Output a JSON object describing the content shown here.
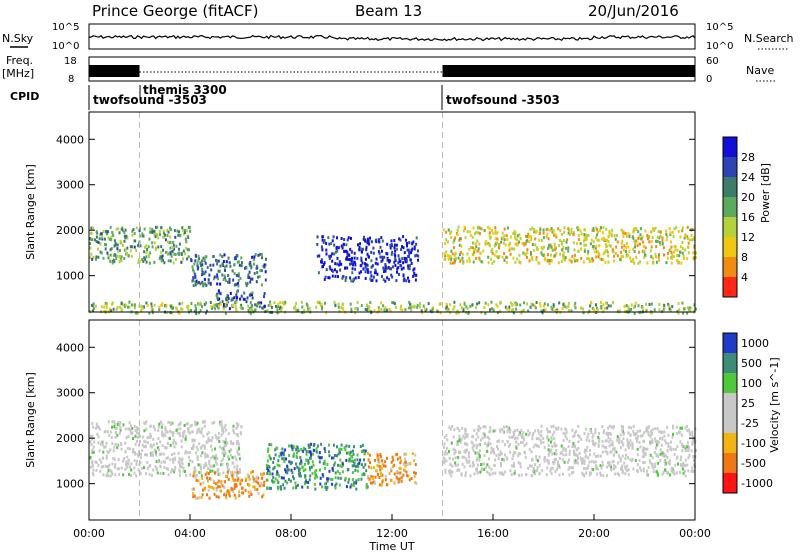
{
  "header": {
    "station": "Prince George (fitACF)",
    "beam": "Beam 13",
    "date": "20/Jun/2016"
  },
  "top_panels": {
    "nsky_label": "N.Sky",
    "nsearch_label": "N.Search",
    "noise_ticks_left": [
      "10^5",
      "10^0"
    ],
    "noise_ticks_right": [
      "10^5",
      "10^0"
    ],
    "freq_label_1": "Freq.",
    "freq_label_2": "[MHz]",
    "freq_ticks": [
      "18",
      "8"
    ],
    "nave_label": "Nave",
    "nave_ticks": [
      "60",
      "0"
    ],
    "cpid_label": "CPID",
    "cpid_segments": [
      {
        "name": "twofsound -3503",
        "start_hour": 0
      },
      {
        "name": "themis 3300",
        "start_hour": 2
      },
      {
        "name": "twofsound -3503",
        "start_hour": 14
      }
    ]
  },
  "chart_data": [
    {
      "type": "heatmap",
      "title": "",
      "ylabel": "Slant Range [km]",
      "xlabel": "",
      "xlim": [
        0,
        24
      ],
      "ylim": [
        200,
        4600
      ],
      "yticks": [
        "1000",
        "2000",
        "3000",
        "4000"
      ],
      "colorbar_label": "Power [dB]",
      "colorbar_ticks": [
        "4",
        "8",
        "12",
        "16",
        "20",
        "24",
        "28"
      ],
      "colorbar_colors": [
        "#1010d8",
        "#2c44b4",
        "#3c7c68",
        "#5caa5c",
        "#b4d23c",
        "#f0c814",
        "#f08c14",
        "#ff2814"
      ],
      "regions": [
        {
          "x": [
            0,
            4
          ],
          "y": [
            1300,
            2100
          ],
          "level": 0.6
        },
        {
          "x": [
            4,
            7
          ],
          "y": [
            800,
            1500
          ],
          "level": 0.75
        },
        {
          "x": [
            5,
            7
          ],
          "y": [
            300,
            700
          ],
          "level": 0.8
        },
        {
          "x": [
            9,
            13
          ],
          "y": [
            900,
            1900
          ],
          "level": 0.95
        },
        {
          "x": [
            14,
            24
          ],
          "y": [
            1300,
            2100
          ],
          "level": 0.35
        },
        {
          "x": [
            0,
            24
          ],
          "y": [
            200,
            450
          ],
          "level": 0.5
        }
      ]
    },
    {
      "type": "heatmap",
      "title": "",
      "ylabel": "Slant Range [km]",
      "xlabel": "Time UT",
      "xlim": [
        0,
        24
      ],
      "ylim": [
        200,
        4600
      ],
      "xticks": [
        "00:00",
        "04:00",
        "08:00",
        "12:00",
        "16:00",
        "20:00",
        "00:00"
      ],
      "yticks": [
        "1000",
        "2000",
        "3000",
        "4000"
      ],
      "colorbar_label": "Velocity [m s^-1]",
      "colorbar_ticks": [
        "1000",
        "500",
        "100",
        "25",
        "-25",
        "-100",
        "-500",
        "-1000"
      ],
      "colorbar_colors": [
        "#1e3cc8",
        "#3c8c78",
        "#50c83c",
        "#c8c8c8",
        "#c8c8c8",
        "#f0b414",
        "#f07814",
        "#ff1414"
      ],
      "regions": [
        {
          "x": [
            0,
            6
          ],
          "y": [
            1200,
            2400
          ],
          "class": "ground"
        },
        {
          "x": [
            4,
            7
          ],
          "y": [
            700,
            1300
          ],
          "class": "negative"
        },
        {
          "x": [
            7,
            11
          ],
          "y": [
            900,
            1900
          ],
          "class": "positive"
        },
        {
          "x": [
            11,
            13
          ],
          "y": [
            1000,
            1700
          ],
          "class": "negative"
        },
        {
          "x": [
            14,
            24
          ],
          "y": [
            1200,
            2300
          ],
          "class": "ground"
        }
      ]
    }
  ]
}
